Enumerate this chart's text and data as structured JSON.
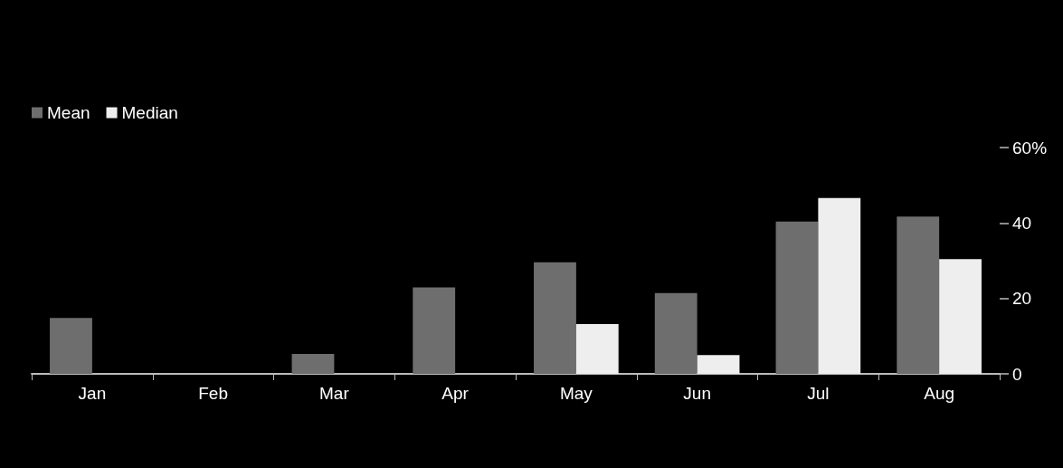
{
  "chart_data": {
    "type": "bar",
    "categories": [
      "Jan",
      "Feb",
      "Mar",
      "Apr",
      "May",
      "Jun",
      "Jul",
      "Aug"
    ],
    "series": [
      {
        "name": "Mean",
        "color": "#6e6e6e",
        "values": [
          14.8,
          0,
          5.3,
          22.9,
          29.6,
          21.4,
          40.4,
          41.7
        ]
      },
      {
        "name": "Median",
        "color": "#eeeeee",
        "values": [
          0,
          0,
          null,
          0,
          13.2,
          5.0,
          46.6,
          30.4
        ]
      }
    ],
    "ylim": [
      0,
      60
    ],
    "yticks": [
      0,
      20,
      40,
      {
        "value": 60,
        "label": "60%"
      }
    ],
    "legend": "top left"
  }
}
